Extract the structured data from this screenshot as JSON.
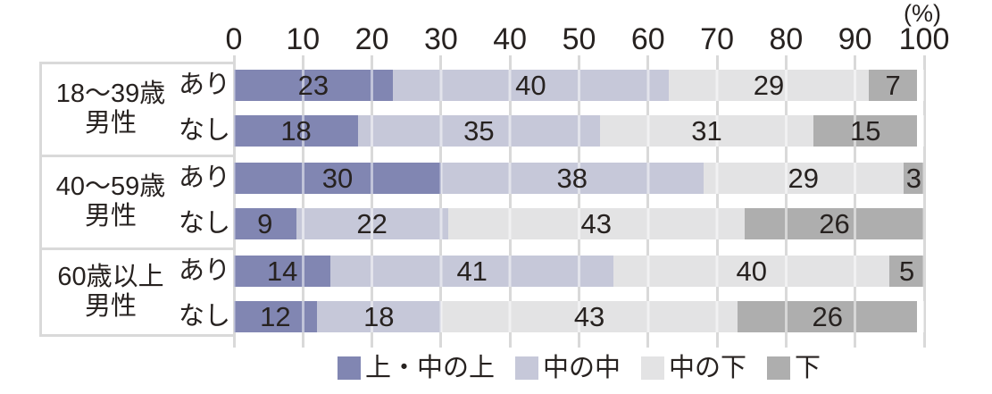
{
  "chart_data": {
    "type": "bar",
    "orientation": "horizontal",
    "stacked": true,
    "title": "",
    "unit_label": "(%)",
    "xlim": [
      0,
      100
    ],
    "x_ticks": [
      0,
      10,
      20,
      30,
      40,
      50,
      60,
      70,
      80,
      90,
      100
    ],
    "grid": true,
    "legend_position": "bottom",
    "series": [
      {
        "name": "上・中の上",
        "color": "#8186b2"
      },
      {
        "name": "中の中",
        "color": "#c6c8d9"
      },
      {
        "name": "中の下",
        "color": "#e3e3e4"
      },
      {
        "name": "下",
        "color": "#aeaeae"
      }
    ],
    "groups": [
      {
        "label_lines": [
          "18〜39歳",
          "男性"
        ],
        "rows": [
          {
            "label": "あり",
            "values": [
              23,
              40,
              29,
              7
            ]
          },
          {
            "label": "なし",
            "values": [
              18,
              35,
              31,
              15
            ]
          }
        ]
      },
      {
        "label_lines": [
          "40〜59歳",
          "男性"
        ],
        "rows": [
          {
            "label": "あり",
            "values": [
              30,
              38,
              29,
              3
            ]
          },
          {
            "label": "なし",
            "values": [
              9,
              22,
              43,
              26
            ]
          }
        ]
      },
      {
        "label_lines": [
          "60歳以上",
          "男性"
        ],
        "rows": [
          {
            "label": "あり",
            "values": [
              14,
              41,
              40,
              5
            ]
          },
          {
            "label": "なし",
            "values": [
              12,
              18,
              43,
              26
            ]
          }
        ]
      }
    ],
    "grid_color": "#d9d9d9",
    "text_color": "#272220"
  }
}
